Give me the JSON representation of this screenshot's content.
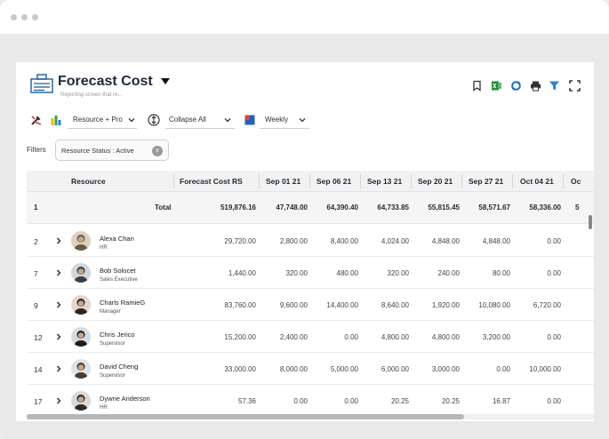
{
  "report": {
    "title": "Forecast Cost",
    "subtitle": "Reporting screen that re..."
  },
  "toolbar_icons": [
    "bookmark-icon",
    "excel-icon",
    "refresh-icon",
    "print-icon",
    "filter-icon",
    "fullscreen-icon"
  ],
  "controls": {
    "group_by": "Resource + Pro",
    "collapse": "Collapse All",
    "period": "Weekly"
  },
  "filters": {
    "label": "Filters",
    "chip": "Resource Status : Active",
    "chip_remove": "x"
  },
  "grid": {
    "columns": [
      "Resource",
      "Forecast Cost RS",
      "Sep 01 21",
      "Sep 06 21",
      "Sep 13 21",
      "Sep 20 21",
      "Sep 27 21",
      "Oct 04 21",
      "Oc"
    ],
    "total": {
      "num": "1",
      "label": "Total",
      "forecast": "519,876.16",
      "weeks": [
        "47,748.00",
        "64,390.40",
        "64,733.85",
        "55,815.45",
        "58,571.67",
        "58,336.00",
        "5"
      ]
    },
    "rows": [
      {
        "num": "2",
        "name": "Alexa Chan",
        "role": "HR",
        "forecast": "29,720.00",
        "weeks": [
          "2,800.00",
          "8,400.00",
          "4,024.00",
          "4,848.00",
          "4,848.00",
          "0.00"
        ]
      },
      {
        "num": "7",
        "name": "Bob Solocet",
        "role": "Sales Executive",
        "forecast": "1,440.00",
        "weeks": [
          "320.00",
          "480.00",
          "320.00",
          "240.00",
          "80.00",
          "0.00"
        ]
      },
      {
        "num": "9",
        "name": "Charls RamieG",
        "role": "Manager",
        "forecast": "83,760.00",
        "weeks": [
          "9,600.00",
          "14,400.00",
          "8,640.00",
          "1,920.00",
          "10,080.00",
          "6,720.00"
        ]
      },
      {
        "num": "12",
        "name": "Chris Jerico",
        "role": "Supervisor",
        "forecast": "15,200.00",
        "weeks": [
          "2,400.00",
          "0.00",
          "4,800.00",
          "4,800.00",
          "3,200.00",
          "0.00"
        ]
      },
      {
        "num": "14",
        "name": "David Cheng",
        "role": "Supervisor",
        "forecast": "33,000.00",
        "weeks": [
          "8,000.00",
          "5,000.00",
          "6,000.00",
          "3,000.00",
          "0.00",
          "10,000.00"
        ]
      },
      {
        "num": "17",
        "name": "Dywne Anderson",
        "role": "HR",
        "forecast": "57.36",
        "weeks": [
          "0.00",
          "0.00",
          "20.25",
          "20.25",
          "16.87",
          "0.00"
        ]
      }
    ]
  },
  "colors": {
    "title": "#1e2a3a",
    "header_bg": "#f2f2f2",
    "excel_green": "#1f8f3a",
    "refresh_blue": "#1e6fb8",
    "filter_blue": "#2a86d1"
  }
}
